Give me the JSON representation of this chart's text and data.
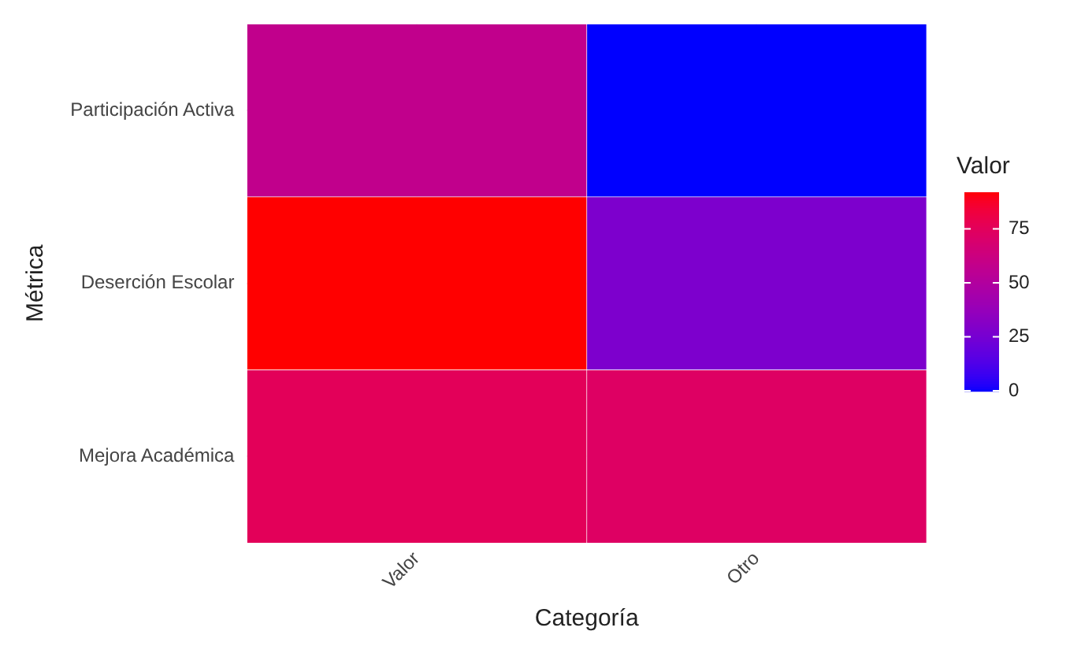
{
  "chart_data": {
    "type": "heatmap",
    "xlabel": "Categoría",
    "ylabel": "Métrica",
    "clabel": "Valor",
    "categories": [
      "Valor",
      "Otro"
    ],
    "y_categories": [
      "Participación Activa",
      "Deserción Escolar",
      "Mejora Académica"
    ],
    "cells": [
      [
        58,
        0
      ],
      [
        92,
        28
      ],
      [
        76,
        73
      ]
    ],
    "clim": [
      0,
      92
    ],
    "cticks": [
      0,
      25,
      50,
      75
    ],
    "grid": true
  }
}
